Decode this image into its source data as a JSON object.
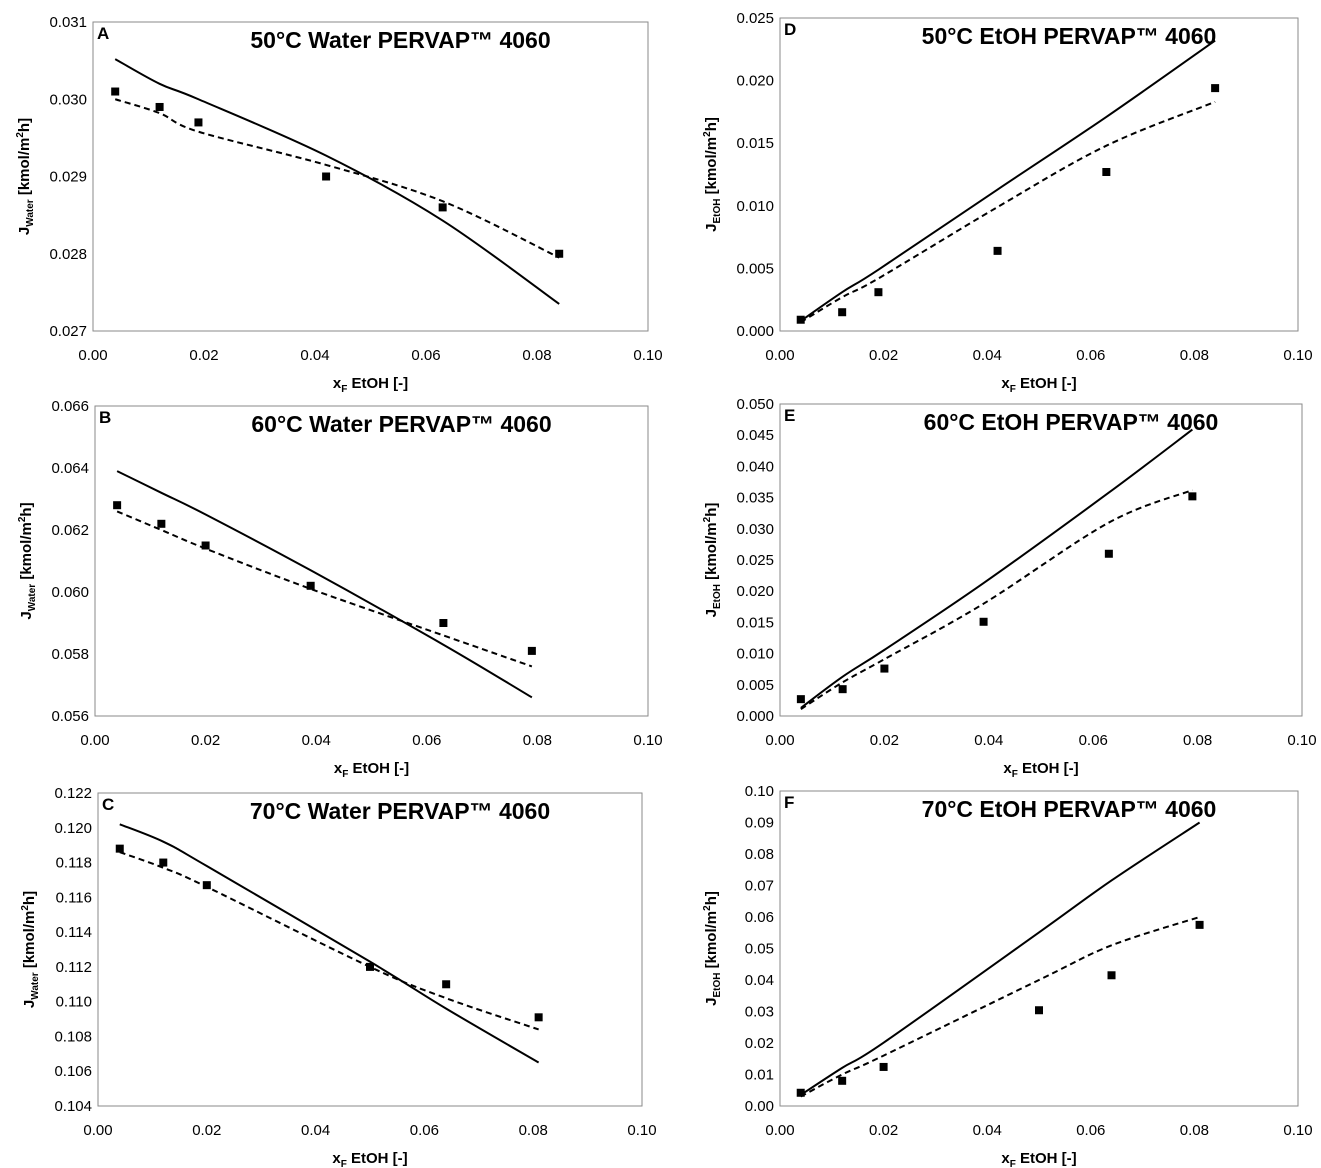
{
  "chart_data": [
    {
      "panel": "A",
      "type": "line",
      "title": "50°C Water PERVAP™ 4060",
      "xlabel_main": "x",
      "xlabel_sub": "F",
      "xlabel_rest": " EtOH [-]",
      "ylabel_main": "J",
      "ylabel_sub": "Water",
      "ylabel_rest": " [kmol/m",
      "ylabel_sup": "2",
      "ylabel_end": "h]",
      "xlim": [
        0,
        0.1
      ],
      "ylim": [
        0.027,
        0.031
      ],
      "xticks": [
        "0.00",
        "0.02",
        "0.04",
        "0.06",
        "0.08",
        "0.10"
      ],
      "yticks": [
        "0.027",
        "0.028",
        "0.029",
        "0.030",
        "0.031"
      ],
      "grid": false,
      "series": [
        {
          "style": "marker-square",
          "x": [
            0.004,
            0.012,
            0.019,
            0.042,
            0.063,
            0.084
          ],
          "y": [
            0.0301,
            0.0299,
            0.0297,
            0.029,
            0.0286,
            0.028
          ]
        },
        {
          "style": "solid",
          "x": [
            0.004,
            0.012,
            0.019,
            0.042,
            0.063,
            0.084
          ],
          "y": [
            0.03052,
            0.0302,
            0.03,
            0.02927,
            0.02843,
            0.02735
          ]
        },
        {
          "style": "dashed",
          "x": [
            0.004,
            0.012,
            0.019,
            0.042,
            0.063,
            0.084
          ],
          "y": [
            0.03,
            0.02982,
            0.02958,
            0.02915,
            0.02868,
            0.02795
          ]
        }
      ]
    },
    {
      "panel": "B",
      "type": "line",
      "title": "60°C Water PERVAP™ 4060",
      "xlabel_main": "x",
      "xlabel_sub": "F",
      "xlabel_rest": " EtOH [-]",
      "ylabel_main": "J",
      "ylabel_sub": "Water",
      "ylabel_rest": " [kmol/m",
      "ylabel_sup": "2",
      "ylabel_end": "h]",
      "xlim": [
        0,
        0.1
      ],
      "ylim": [
        0.056,
        0.066
      ],
      "xticks": [
        "0.00",
        "0.02",
        "0.04",
        "0.06",
        "0.08",
        "0.10"
      ],
      "yticks": [
        "0.056",
        "0.058",
        "0.060",
        "0.062",
        "0.064",
        "0.066"
      ],
      "grid": false,
      "series": [
        {
          "style": "marker-square",
          "x": [
            0.004,
            0.012,
            0.02,
            0.039,
            0.063,
            0.079
          ],
          "y": [
            0.0628,
            0.0622,
            0.0615,
            0.0602,
            0.059,
            0.0581
          ]
        },
        {
          "style": "solid",
          "x": [
            0.004,
            0.012,
            0.02,
            0.039,
            0.063,
            0.079
          ],
          "y": [
            0.0639,
            0.0632,
            0.0625,
            0.0607,
            0.0583,
            0.0566
          ]
        },
        {
          "style": "dashed",
          "x": [
            0.004,
            0.012,
            0.02,
            0.039,
            0.063,
            0.079
          ],
          "y": [
            0.0626,
            0.062,
            0.0614,
            0.0601,
            0.0586,
            0.0576
          ]
        }
      ]
    },
    {
      "panel": "C",
      "type": "line",
      "title": "70°C Water PERVAP™ 4060",
      "xlabel_main": "x",
      "xlabel_sub": "F",
      "xlabel_rest": " EtOH [-]",
      "ylabel_main": "J",
      "ylabel_sub": "Water",
      "ylabel_rest": " [kmol/m",
      "ylabel_sup": "2",
      "ylabel_end": "h]",
      "xlim": [
        0,
        0.1
      ],
      "ylim": [
        0.104,
        0.122
      ],
      "xticks": [
        "0.00",
        "0.02",
        "0.04",
        "0.06",
        "0.08",
        "0.10"
      ],
      "yticks": [
        "0.104",
        "0.106",
        "0.108",
        "0.110",
        "0.112",
        "0.114",
        "0.116",
        "0.118",
        "0.120",
        "0.122"
      ],
      "grid": false,
      "series": [
        {
          "style": "marker-square",
          "x": [
            0.004,
            0.012,
            0.02,
            0.05,
            0.064,
            0.081
          ],
          "y": [
            0.1188,
            0.118,
            0.1167,
            0.112,
            0.111,
            0.1091
          ]
        },
        {
          "style": "solid",
          "x": [
            0.004,
            0.012,
            0.02,
            0.05,
            0.064,
            0.081
          ],
          "y": [
            0.1202,
            0.1192,
            0.1178,
            0.1123,
            0.1096,
            0.1065
          ]
        },
        {
          "style": "dashed",
          "x": [
            0.004,
            0.012,
            0.02,
            0.05,
            0.064,
            0.081
          ],
          "y": [
            0.1186,
            0.1177,
            0.1166,
            0.112,
            0.1102,
            0.1084
          ]
        }
      ]
    },
    {
      "panel": "D",
      "type": "line",
      "title": "50°C EtOH PERVAP™ 4060",
      "xlabel_main": "x",
      "xlabel_sub": "F",
      "xlabel_rest": " EtOH [-]",
      "ylabel_main": "J",
      "ylabel_sub": "EtOH",
      "ylabel_rest": " [kmol/m",
      "ylabel_sup": "2",
      "ylabel_end": "h]",
      "xlim": [
        0,
        0.1
      ],
      "ylim": [
        0,
        0.025
      ],
      "xticks": [
        "0.00",
        "0.02",
        "0.04",
        "0.06",
        "0.08",
        "0.10"
      ],
      "yticks": [
        "0.000",
        "0.005",
        "0.010",
        "0.015",
        "0.020",
        "0.025"
      ],
      "grid": false,
      "series": [
        {
          "style": "marker-square",
          "x": [
            0.004,
            0.012,
            0.019,
            0.042,
            0.063,
            0.084
          ],
          "y": [
            0.0009,
            0.0015,
            0.0031,
            0.0064,
            0.0127,
            0.0194
          ]
        },
        {
          "style": "solid",
          "x": [
            0.004,
            0.012,
            0.019,
            0.042,
            0.063,
            0.084
          ],
          "y": [
            0.0008,
            0.0031,
            0.0049,
            0.0113,
            0.0171,
            0.0232
          ]
        },
        {
          "style": "dashed",
          "x": [
            0.004,
            0.012,
            0.019,
            0.042,
            0.063,
            0.084
          ],
          "y": [
            0.0007,
            0.0027,
            0.0042,
            0.0099,
            0.0148,
            0.0183
          ]
        }
      ]
    },
    {
      "panel": "E",
      "type": "line",
      "title": "60°C EtOH PERVAP™ 4060",
      "xlabel_main": "x",
      "xlabel_sub": "F",
      "xlabel_rest": " EtOH [-]",
      "ylabel_main": "J",
      "ylabel_sub": "EtOH",
      "ylabel_rest": " [kmol/m",
      "ylabel_sup": "2",
      "ylabel_end": "h]",
      "xlim": [
        0,
        0.1
      ],
      "ylim": [
        0,
        0.05
      ],
      "xticks": [
        "0.00",
        "0.02",
        "0.04",
        "0.06",
        "0.08",
        "0.10"
      ],
      "yticks": [
        "0.000",
        "0.005",
        "0.010",
        "0.015",
        "0.020",
        "0.025",
        "0.030",
        "0.035",
        "0.040",
        "0.045",
        "0.050"
      ],
      "grid": false,
      "series": [
        {
          "style": "marker-square",
          "x": [
            0.004,
            0.012,
            0.02,
            0.039,
            0.063,
            0.079
          ],
          "y": [
            0.0027,
            0.0043,
            0.0076,
            0.0151,
            0.026,
            0.0352
          ]
        },
        {
          "style": "solid",
          "x": [
            0.004,
            0.012,
            0.02,
            0.039,
            0.063,
            0.079
          ],
          "y": [
            0.0013,
            0.0063,
            0.0106,
            0.0213,
            0.0358,
            0.0459
          ]
        },
        {
          "style": "dashed",
          "x": [
            0.004,
            0.012,
            0.02,
            0.039,
            0.063,
            0.079
          ],
          "y": [
            0.0011,
            0.0054,
            0.0091,
            0.018,
            0.031,
            0.0362
          ]
        }
      ]
    },
    {
      "panel": "F",
      "type": "line",
      "title": "70°C EtOH PERVAP™ 4060",
      "xlabel_main": "x",
      "xlabel_sub": "F",
      "xlabel_rest": " EtOH [-]",
      "ylabel_main": "J",
      "ylabel_sub": "EtOH",
      "ylabel_rest": " [kmol/m",
      "ylabel_sup": "2",
      "ylabel_end": "h]",
      "xlim": [
        0,
        0.1
      ],
      "ylim": [
        0,
        0.1
      ],
      "xticks": [
        "0.00",
        "0.02",
        "0.04",
        "0.06",
        "0.08",
        "0.10"
      ],
      "yticks": [
        "0.00",
        "0.01",
        "0.02",
        "0.03",
        "0.04",
        "0.05",
        "0.06",
        "0.07",
        "0.08",
        "0.09",
        "0.10"
      ],
      "grid": false,
      "series": [
        {
          "style": "marker-square",
          "x": [
            0.004,
            0.012,
            0.02,
            0.05,
            0.064,
            0.081
          ],
          "y": [
            0.0042,
            0.008,
            0.0124,
            0.0304,
            0.0415,
            0.0575
          ]
        },
        {
          "style": "solid",
          "x": [
            0.004,
            0.012,
            0.02,
            0.05,
            0.064,
            0.081
          ],
          "y": [
            0.0035,
            0.0121,
            0.0201,
            0.0551,
            0.0716,
            0.09
          ]
        },
        {
          "style": "dashed",
          "x": [
            0.004,
            0.012,
            0.02,
            0.05,
            0.064,
            0.081
          ],
          "y": [
            0.003,
            0.01,
            0.016,
            0.04,
            0.051,
            0.06
          ]
        }
      ]
    }
  ]
}
